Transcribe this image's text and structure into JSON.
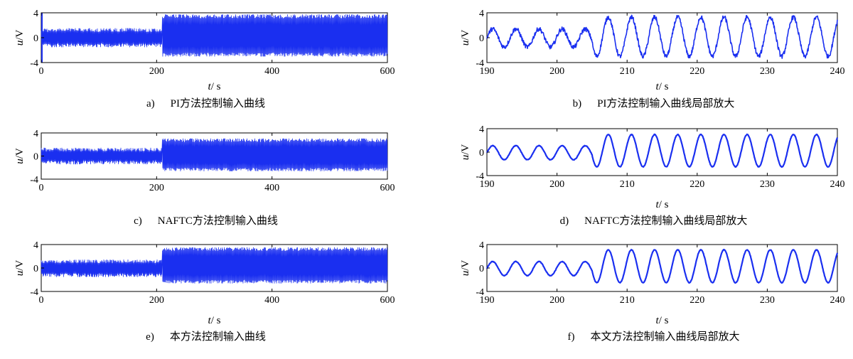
{
  "colors": {
    "signal": "#1a2ff0",
    "axis": "#000000"
  },
  "chart_data": [
    {
      "id": "a",
      "type": "line",
      "caption_label": "a)",
      "caption": "PI方法控制输入曲线",
      "ylabel": "u",
      "yunit": "/V",
      "xlabel": "t",
      "xunit": "/ s",
      "xlim": [
        0,
        600
      ],
      "ylim": [
        -4,
        4
      ],
      "xticks": [
        "0",
        "200",
        "400",
        "600"
      ],
      "yticks": [
        "4",
        "0",
        "-4"
      ],
      "series": [
        {
          "segments": [
            {
              "x_start": 0,
              "x_end": 210,
              "min": -1.5,
              "max": 1.5
            },
            {
              "x_start": 210,
              "x_end": 600,
              "min": -3.0,
              "max": 3.7
            }
          ],
          "spikes": [
            {
              "x": 0,
              "y": 4
            },
            {
              "x": 0,
              "y": -4
            }
          ]
        }
      ]
    },
    {
      "id": "b",
      "type": "line",
      "caption_label": "b)",
      "caption": "PI方法控制输入曲线局部放大",
      "ylabel": "u",
      "yunit": "/V",
      "xlabel": "t",
      "xunit": "/ s",
      "xlim": [
        190,
        240
      ],
      "ylim": [
        -4,
        4
      ],
      "xticks": [
        "190",
        "200",
        "210",
        "220",
        "230",
        "240"
      ],
      "yticks": [
        "4",
        "0",
        "-4"
      ],
      "series": [
        {
          "oscillation": {
            "period": 3.3,
            "phase_ref": 190,
            "segments": [
              {
                "x_start": 190,
                "x_end": 205,
                "min": -1.5,
                "max": 1.4
              },
              {
                "x_start": 205,
                "x_end": 240,
                "min": -3.0,
                "max": 3.3
              }
            ],
            "noise": 0.35
          }
        }
      ]
    },
    {
      "id": "c",
      "type": "line",
      "caption_label": "c)",
      "caption": "NAFTC方法控制输入曲线",
      "ylabel": "u",
      "yunit": "/V",
      "xlabel": "",
      "xunit": "",
      "xlim": [
        0,
        600
      ],
      "ylim": [
        -4,
        4
      ],
      "xticks": [
        "0",
        "200",
        "400",
        "600"
      ],
      "yticks": [
        "4",
        "0",
        "-4"
      ],
      "series": [
        {
          "segments": [
            {
              "x_start": 0,
              "x_end": 210,
              "min": -1.4,
              "max": 1.4
            },
            {
              "x_start": 210,
              "x_end": 600,
              "min": -2.6,
              "max": 3.0
            }
          ]
        }
      ]
    },
    {
      "id": "d",
      "type": "line",
      "caption_label": "d)",
      "caption": "NAFTC方法控制输入曲线局部放大",
      "ylabel": "u",
      "yunit": "/V",
      "xlabel": "t",
      "xunit": "/ s",
      "xlim": [
        190,
        240
      ],
      "ylim": [
        -4,
        4
      ],
      "xticks": [
        "190",
        "200",
        "210",
        "220",
        "230",
        "240"
      ],
      "yticks": [
        "4",
        "0",
        "-4"
      ],
      "series": [
        {
          "oscillation": {
            "period": 3.3,
            "phase_ref": 190,
            "segments": [
              {
                "x_start": 190,
                "x_end": 205,
                "min": -1.3,
                "max": 1.1
              },
              {
                "x_start": 205,
                "x_end": 240,
                "min": -2.5,
                "max": 3.0
              }
            ],
            "noise": 0.05
          }
        }
      ]
    },
    {
      "id": "e",
      "type": "line",
      "caption_label": "e)",
      "caption": "本方法控制输入曲线",
      "ylabel": "u",
      "yunit": "/V",
      "xlabel": "t",
      "xunit": "/ s",
      "xlim": [
        0,
        600
      ],
      "ylim": [
        -4,
        4
      ],
      "xticks": [
        "0",
        "200",
        "400",
        "600"
      ],
      "yticks": [
        "4",
        "0",
        "-4"
      ],
      "series": [
        {
          "segments": [
            {
              "x_start": 0,
              "x_end": 210,
              "min": -1.5,
              "max": 1.4
            },
            {
              "x_start": 210,
              "x_end": 600,
              "min": -2.6,
              "max": 3.5
            }
          ]
        }
      ]
    },
    {
      "id": "f",
      "type": "line",
      "caption_label": "f)",
      "caption": "本文方法控制输入曲线局部放大",
      "ylabel": "u",
      "yunit": "/V",
      "xlabel": "t",
      "xunit": "/ s",
      "xlim": [
        190,
        240
      ],
      "ylim": [
        -4,
        4
      ],
      "xticks": [
        "190",
        "200",
        "210",
        "220",
        "230",
        "240"
      ],
      "yticks": [
        "4",
        "0",
        "-4"
      ],
      "series": [
        {
          "oscillation": {
            "period": 3.3,
            "phase_ref": 190,
            "segments": [
              {
                "x_start": 190,
                "x_end": 205,
                "min": -1.3,
                "max": 1.1
              },
              {
                "x_start": 205,
                "x_end": 240,
                "min": -2.5,
                "max": 3.1
              }
            ],
            "noise": 0.05
          }
        }
      ]
    }
  ]
}
